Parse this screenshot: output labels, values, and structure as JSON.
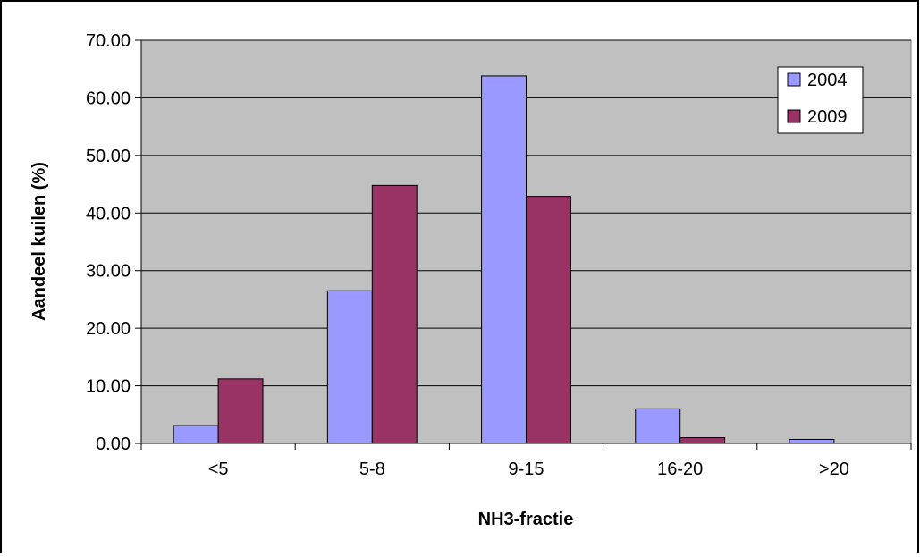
{
  "chart_data": {
    "type": "bar",
    "xlabel": "NH3-fractie",
    "ylabel": "Aandeel kuilen (%)",
    "categories": [
      "<5",
      "5-8",
      "9-15",
      "16-20",
      ">20"
    ],
    "series": [
      {
        "name": "2004",
        "values": [
          3.1,
          26.5,
          63.8,
          6.0,
          0.7
        ],
        "color": "#9999ff"
      },
      {
        "name": "2009",
        "values": [
          11.2,
          44.8,
          42.9,
          1.0,
          0.0
        ],
        "color": "#993366"
      }
    ],
    "ylim": [
      0,
      70
    ],
    "ytick_step": 10,
    "ytick_decimals": 2,
    "grid": true,
    "legend": "top-right",
    "plot_background": "#c0c0c0"
  }
}
